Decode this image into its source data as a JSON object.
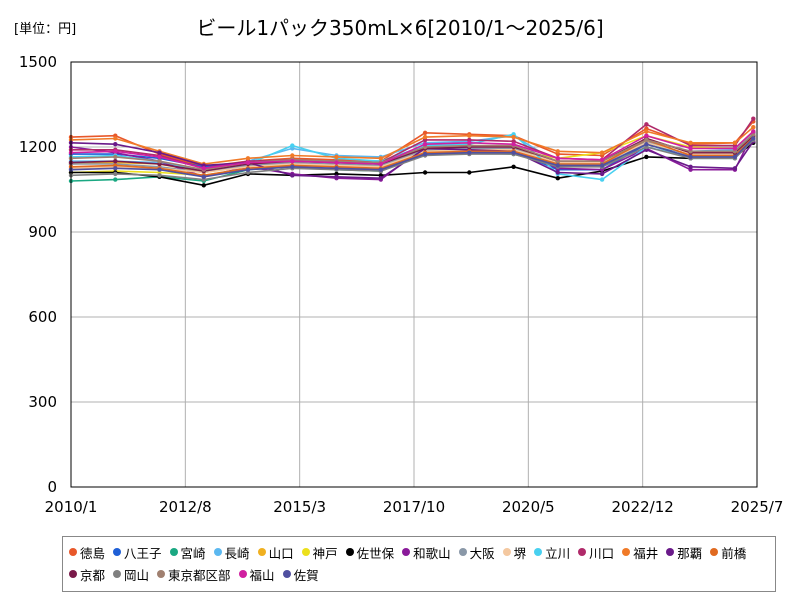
{
  "chart_data": {
    "type": "line",
    "title": "ビール1パック350mL×6[2010/1～2025/6]",
    "unit_label": "[単位：円]",
    "xlabel": "",
    "ylabel": "",
    "ylim": [
      0,
      1500
    ],
    "yticks": [
      "0",
      "300",
      "600",
      "900",
      "1200",
      "1500"
    ],
    "xticks": [
      "2010/1",
      "2012/8",
      "2015/3",
      "2017/10",
      "2020/5",
      "2022/12",
      "2025/7"
    ],
    "x": [
      "2010/1",
      "2011/1",
      "2012/1",
      "2013/1",
      "2014/1",
      "2015/1",
      "2016/1",
      "2017/1",
      "2018/1",
      "2019/1",
      "2020/1",
      "2021/1",
      "2022/1",
      "2023/1",
      "2024/1",
      "2025/1",
      "2025/6"
    ],
    "grid": true,
    "legend_position": "bottom",
    "series": [
      {
        "name": "徳島",
        "color": "#e8582a",
        "values": [
          1235,
          1240,
          1175,
          1130,
          1150,
          1160,
          1155,
          1150,
          1250,
          1245,
          1240,
          1175,
          1170,
          1265,
          1210,
          1215,
          1290
        ]
      },
      {
        "name": "八王子",
        "color": "#1f5fd6",
        "values": [
          1175,
          1175,
          1160,
          1130,
          1140,
          1150,
          1140,
          1135,
          1190,
          1190,
          1185,
          1120,
          1120,
          1210,
          1175,
          1175,
          1240
        ]
      },
      {
        "name": "宮崎",
        "color": "#1aa882",
        "values": [
          1080,
          1085,
          1095,
          1080,
          1120,
          1130,
          1120,
          1115,
          1175,
          1180,
          1175,
          1135,
          1130,
          1215,
          1160,
          1160,
          1230
        ]
      },
      {
        "name": "長崎",
        "color": "#5bb8f0",
        "values": [
          1150,
          1150,
          1145,
          1120,
          1150,
          1195,
          1170,
          1165,
          1215,
          1220,
          1240,
          1145,
          1140,
          1225,
          1185,
          1190,
          1250
        ]
      },
      {
        "name": "山口",
        "color": "#f0b020",
        "values": [
          1140,
          1145,
          1140,
          1110,
          1135,
          1145,
          1140,
          1135,
          1200,
          1205,
          1200,
          1150,
          1145,
          1230,
          1180,
          1185,
          1245
        ]
      },
      {
        "name": "神戸",
        "color": "#ece01c",
        "values": [
          1110,
          1115,
          1110,
          1100,
          1125,
          1140,
          1130,
          1120,
          1185,
          1190,
          1190,
          1160,
          1180,
          1240,
          1200,
          1195,
          1255
        ]
      },
      {
        "name": "佐世保",
        "color": "#000000",
        "values": [
          1110,
          1110,
          1095,
          1065,
          1105,
          1100,
          1105,
          1100,
          1110,
          1110,
          1130,
          1090,
          1115,
          1165,
          1160,
          1165,
          1215
        ]
      },
      {
        "name": "和歌山",
        "color": "#8a1a9a",
        "values": [
          1200,
          1180,
          1150,
          1095,
          1130,
          1105,
          1090,
          1085,
          1200,
          1195,
          1190,
          1125,
          1120,
          1195,
          1120,
          1120,
          1250
        ]
      },
      {
        "name": "大阪",
        "color": "#8a98a8",
        "values": [
          1140,
          1140,
          1130,
          1110,
          1135,
          1145,
          1140,
          1135,
          1190,
          1195,
          1195,
          1140,
          1140,
          1220,
          1170,
          1170,
          1230
        ]
      },
      {
        "name": "堺",
        "color": "#f4c8a0",
        "values": [
          1125,
          1130,
          1125,
          1110,
          1130,
          1140,
          1135,
          1130,
          1185,
          1190,
          1190,
          1145,
          1145,
          1215,
          1175,
          1175,
          1235
        ]
      },
      {
        "name": "立川",
        "color": "#48d0f0",
        "values": [
          1165,
          1170,
          1150,
          1115,
          1140,
          1205,
          1160,
          1150,
          1205,
          1210,
          1245,
          1105,
          1085,
          1200,
          1165,
          1170,
          1245
        ]
      },
      {
        "name": "川口",
        "color": "#b02a6a",
        "values": [
          1190,
          1190,
          1170,
          1125,
          1150,
          1155,
          1150,
          1145,
          1225,
          1225,
          1220,
          1160,
          1155,
          1280,
          1205,
          1205,
          1300
        ]
      },
      {
        "name": "福井",
        "color": "#f07a28",
        "values": [
          1225,
          1230,
          1185,
          1140,
          1160,
          1170,
          1165,
          1160,
          1235,
          1240,
          1235,
          1185,
          1180,
          1255,
          1215,
          1215,
          1270
        ]
      },
      {
        "name": "那覇",
        "color": "#6a1a8a",
        "values": [
          1215,
          1210,
          1180,
          1135,
          1145,
          1100,
          1095,
          1090,
          1195,
          1190,
          1185,
          1110,
          1105,
          1190,
          1130,
          1125,
          1220
        ]
      },
      {
        "name": "前橋",
        "color": "#e06a20",
        "values": [
          1130,
          1135,
          1125,
          1100,
          1125,
          1135,
          1130,
          1125,
          1180,
          1185,
          1185,
          1140,
          1140,
          1225,
          1170,
          1170,
          1235
        ]
      },
      {
        "name": "京都",
        "color": "#7a1a4a",
        "values": [
          1145,
          1150,
          1140,
          1115,
          1140,
          1150,
          1145,
          1140,
          1195,
          1200,
          1200,
          1150,
          1150,
          1230,
          1180,
          1180,
          1240
        ]
      },
      {
        "name": "岡山",
        "color": "#808080",
        "values": [
          1100,
          1105,
          1100,
          1085,
          1110,
          1125,
          1120,
          1115,
          1170,
          1175,
          1175,
          1130,
          1130,
          1200,
          1160,
          1160,
          1225
        ]
      },
      {
        "name": "東京都区部",
        "color": "#a08070",
        "values": [
          1160,
          1165,
          1150,
          1120,
          1145,
          1155,
          1150,
          1145,
          1200,
          1205,
          1205,
          1150,
          1150,
          1225,
          1185,
          1185,
          1245
        ]
      },
      {
        "name": "福山",
        "color": "#d020a0",
        "values": [
          1180,
          1185,
          1165,
          1125,
          1145,
          1150,
          1145,
          1140,
          1210,
          1215,
          1210,
          1160,
          1155,
          1240,
          1195,
          1195,
          1255
        ]
      },
      {
        "name": "佐賀",
        "color": "#5050a0",
        "values": [
          1120,
          1125,
          1120,
          1095,
          1120,
          1130,
          1125,
          1120,
          1175,
          1180,
          1180,
          1135,
          1135,
          1210,
          1165,
          1165,
          1230
        ]
      }
    ]
  }
}
